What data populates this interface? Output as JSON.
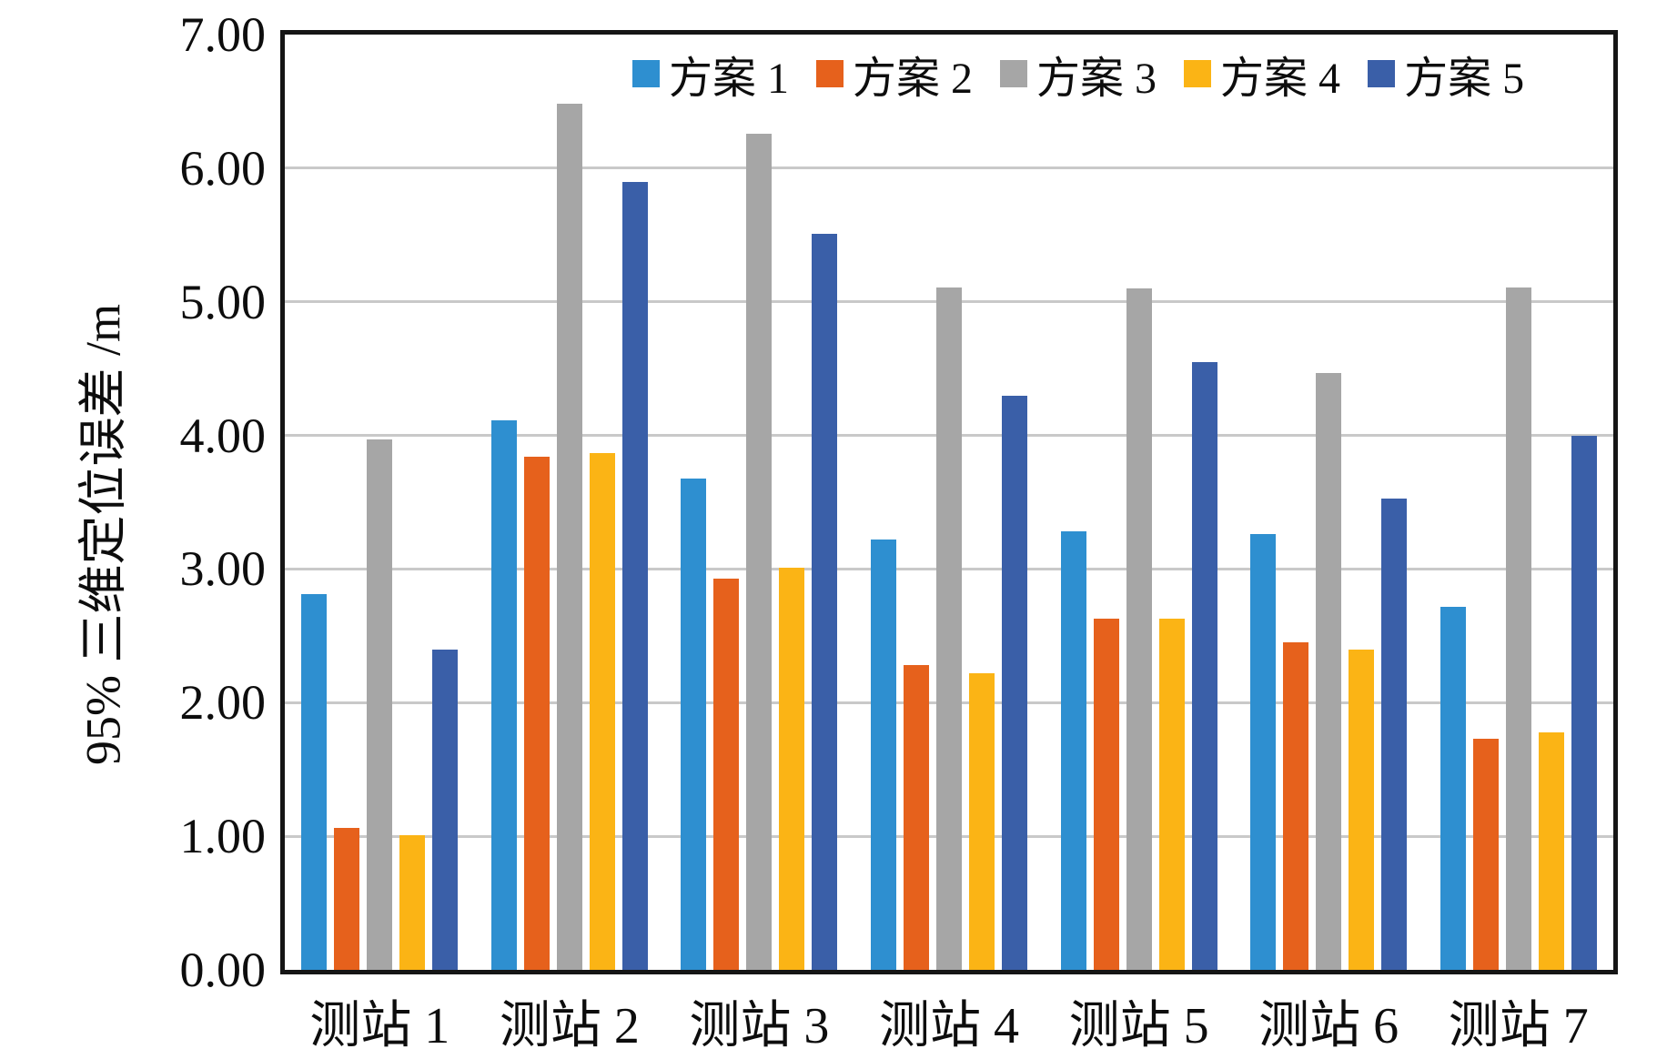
{
  "chart_data": {
    "type": "bar",
    "title": "",
    "ylabel": "95% 三维定位误差 /m",
    "xlabel": "",
    "ylim": [
      0,
      7
    ],
    "ytick_step": 1,
    "ytick_labels": [
      "0.00",
      "1.00",
      "2.00",
      "3.00",
      "4.00",
      "5.00",
      "6.00",
      "7.00"
    ],
    "grid": "horizontal",
    "gridline_color": "#c9c9c9",
    "axis_border_color": "#151515",
    "legend_position": "top-right-inside",
    "categories": [
      "测站 1",
      "测站 2",
      "测站 3",
      "测站 4",
      "测站 5",
      "测站 6",
      "测站 7"
    ],
    "series": [
      {
        "name": "方案 1",
        "color": "#2E8FD0",
        "values": [
          2.81,
          4.11,
          3.68,
          3.22,
          3.28,
          3.26,
          2.72
        ]
      },
      {
        "name": "方案 2",
        "color": "#E6611C",
        "values": [
          1.06,
          3.84,
          2.93,
          2.28,
          2.63,
          2.45,
          1.73
        ]
      },
      {
        "name": "方案 3",
        "color": "#A6A6A6",
        "values": [
          3.97,
          6.48,
          6.26,
          5.11,
          5.1,
          4.47,
          5.11
        ]
      },
      {
        "name": "方案 4",
        "color": "#FBB415",
        "values": [
          1.01,
          3.87,
          3.01,
          2.22,
          2.63,
          2.4,
          1.78
        ]
      },
      {
        "name": "方案 5",
        "color": "#3A5FA8",
        "values": [
          2.4,
          5.9,
          5.51,
          4.3,
          4.55,
          3.53,
          4.0
        ]
      }
    ]
  }
}
